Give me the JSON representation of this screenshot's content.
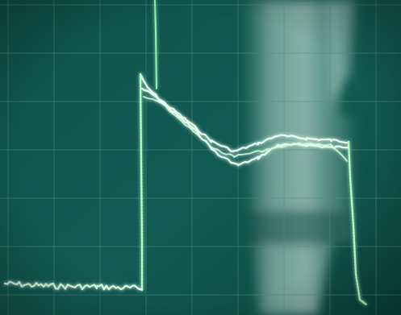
{
  "image": {
    "subject": "oscilloscope-screen",
    "colors": {
      "screen_dark": "#0b4540",
      "screen_mid": "#17615a",
      "graticule": "#4f8f83",
      "reflection": "#b9d9cd",
      "trace": "#e8fff0",
      "trace_glow": "#7dff9a"
    }
  }
}
